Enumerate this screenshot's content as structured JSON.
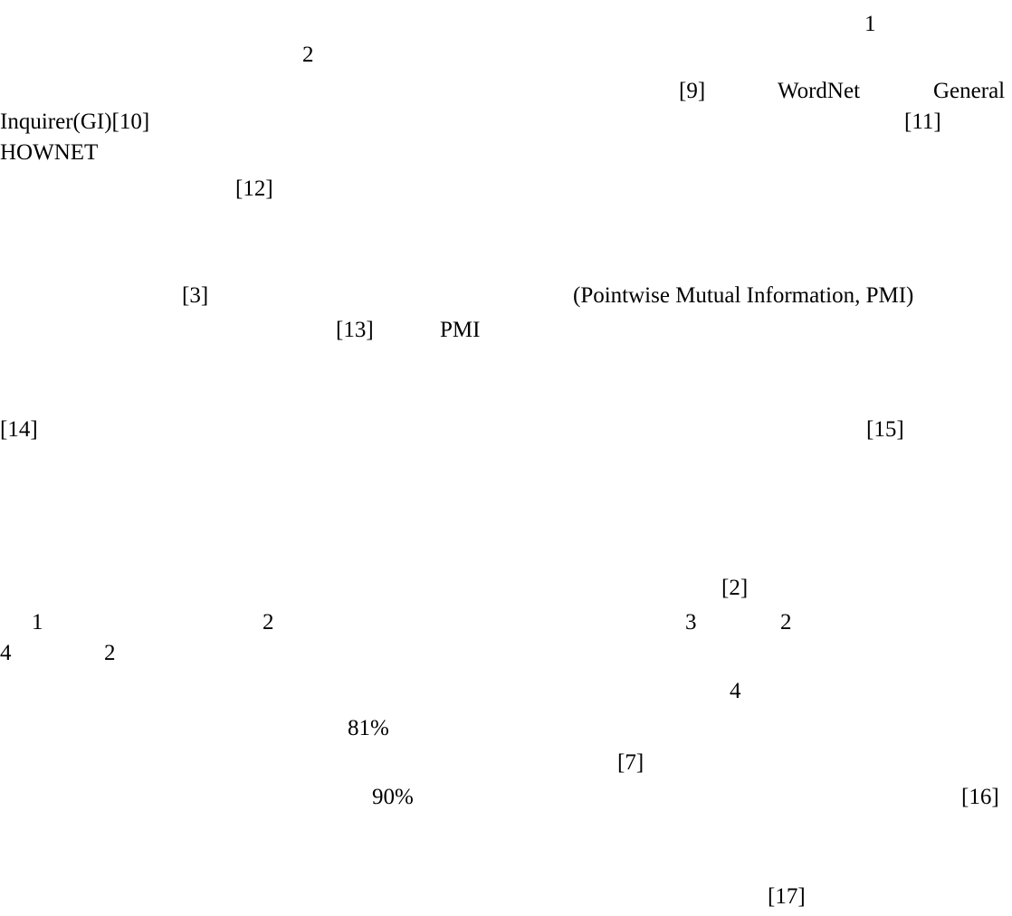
{
  "document": {
    "paragraph_1": {
      "line_1_footnote": "1",
      "line_2_footnote": "2",
      "line_3_ref_9": "[9]",
      "line_3_wordnet": "WordNet",
      "line_3_general": "General",
      "line_4_inquirer": "Inquirer(GI)[10]",
      "line_4_ref_11": "[11]",
      "line_5_hownet": "HOWNET",
      "line_6_ref_12": "[12]"
    },
    "paragraph_2": {
      "line_1_ref_3": "[3]",
      "line_1_pmi_full": "(Pointwise Mutual Information, PMI)",
      "line_2_ref_13": "[13]",
      "line_2_pmi": "PMI"
    },
    "paragraph_3": {
      "ref_14": "[14]",
      "ref_15": "[15]"
    },
    "paragraph_4": {
      "ref_2": "[2]",
      "list_1": "1",
      "list_2a": "2",
      "list_3": "3",
      "list_2b": "2",
      "list_4": "4",
      "list_2c": "2",
      "num_4": "4",
      "pct_81": "81%",
      "ref_7": "[7]",
      "pct_90": "90%",
      "ref_16": "[16]"
    },
    "paragraph_5": {
      "ref_17": "[17]"
    }
  }
}
